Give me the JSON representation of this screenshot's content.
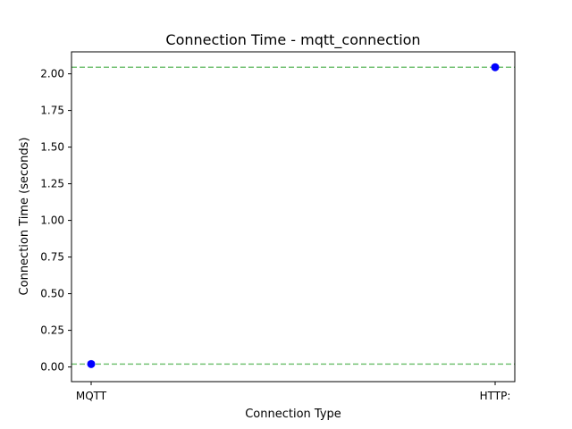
{
  "chart_data": {
    "type": "scatter",
    "title": "Connection Time - mqtt_connection",
    "xlabel": "Connection Type",
    "ylabel": "Connection Time (seconds)",
    "categories": [
      "MQTT",
      "HTTP:"
    ],
    "series": [
      {
        "values": [
          0.02,
          2.045
        ]
      }
    ],
    "reference_lines": [
      0.02,
      2.045
    ],
    "ylim": [
      -0.1,
      2.15
    ],
    "yticks": [
      0.0,
      0.25,
      0.5,
      0.75,
      1.0,
      1.25,
      1.5,
      1.75,
      2.0
    ],
    "ytick_labels": [
      "0.00",
      "0.25",
      "0.50",
      "0.75",
      "1.00",
      "1.25",
      "1.50",
      "1.75",
      "2.00"
    ],
    "grid": false,
    "legend": "none",
    "colors": {
      "points": "#0000ff",
      "reference_lines": "#5cb85c",
      "axes": "#000000"
    }
  }
}
